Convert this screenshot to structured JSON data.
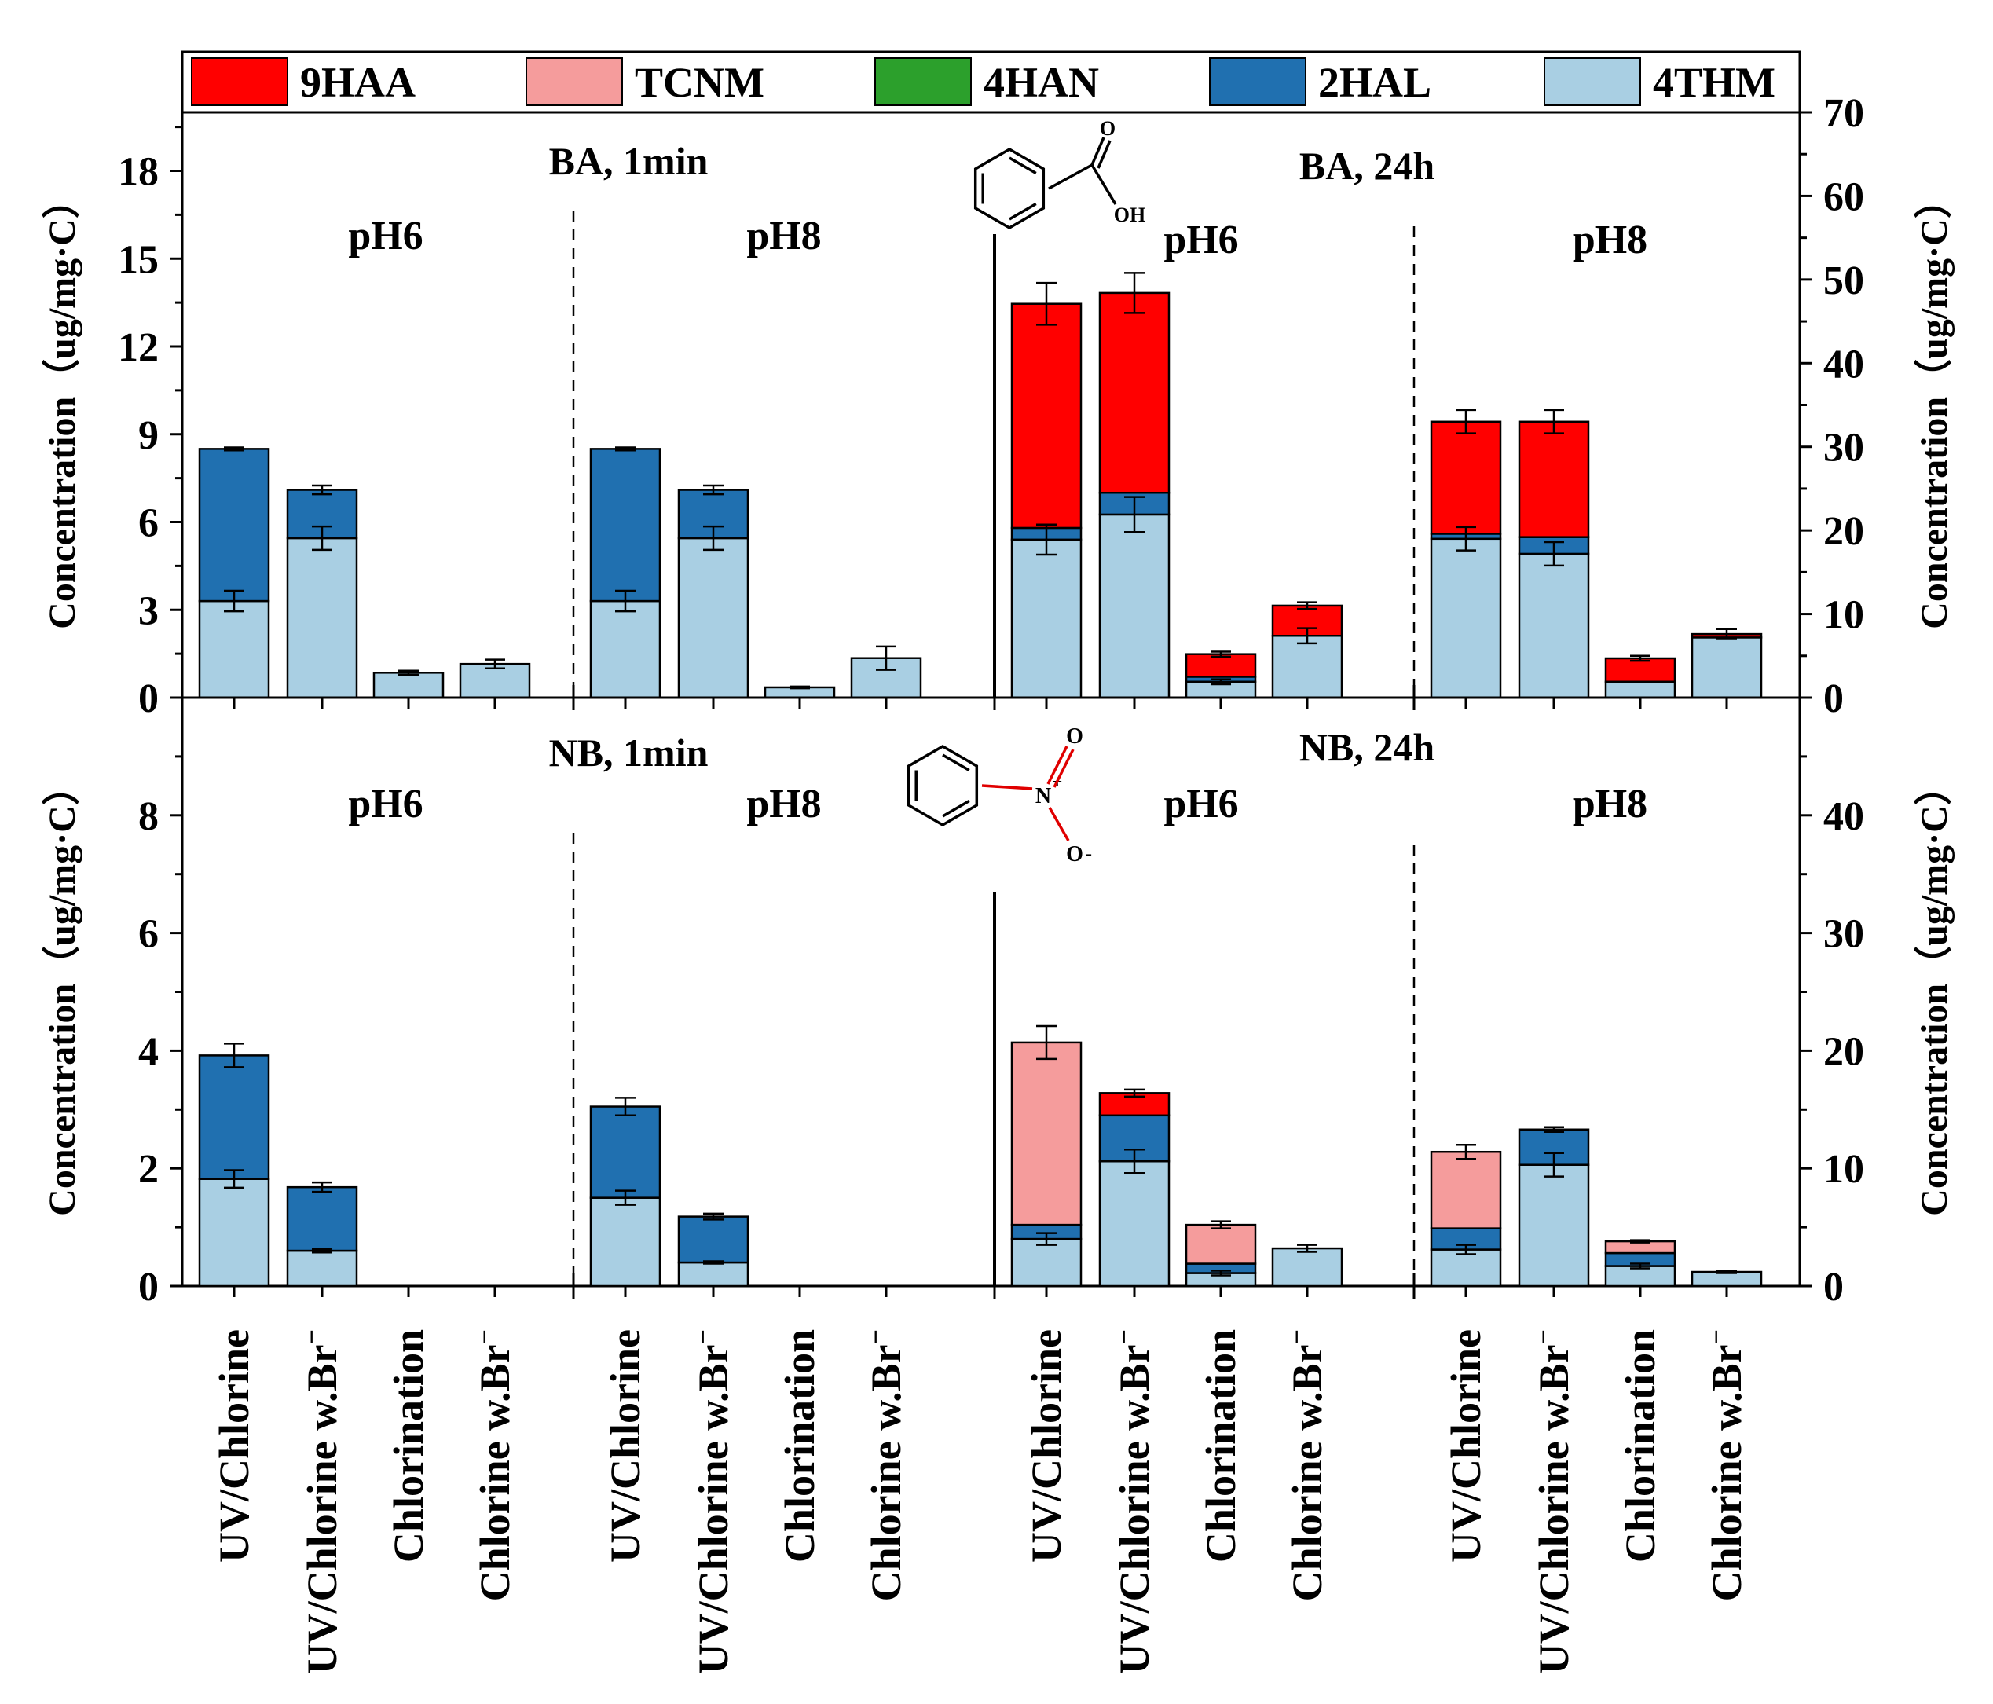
{
  "legend": [
    {
      "key": "HAA",
      "label": "9HAA",
      "color": "#ff0000"
    },
    {
      "key": "TCNM",
      "label": "TCNM",
      "color": "#f59c9c"
    },
    {
      "key": "HAN",
      "label": "4HAN",
      "color": "#2ca02c"
    },
    {
      "key": "HAL",
      "label": "2HAL",
      "color": "#2070b0"
    },
    {
      "key": "THM",
      "label": "4THM",
      "color": "#a9cfe3"
    }
  ],
  "chart_data": [
    {
      "type": "bar",
      "stacked": true,
      "panel": "top",
      "compound": "benzoic acid",
      "molecule_labels": {
        "carbonyl_o": "O",
        "hydroxyl": "OH"
      },
      "left_axis": {
        "label": "Concentration（ug/mg·C）",
        "ylim": [
          0,
          20
        ],
        "ticks": [
          0,
          3,
          6,
          9,
          12,
          15,
          18
        ]
      },
      "right_axis": {
        "label": "Concentration（ug/mg·C）",
        "ylim": [
          0,
          70
        ],
        "ticks": [
          0,
          10,
          20,
          30,
          40,
          50,
          60,
          70
        ]
      },
      "categories": [
        "UV/Chlorine",
        "UV/Chlorine w.Br",
        "Chlorination",
        "Chlorine w.Br"
      ],
      "groups": [
        {
          "title": "BA, 1min",
          "ph": "pH6",
          "axis": "left",
          "bars": [
            {
              "THM": 3.3,
              "HAL": 5.2,
              "HAN": 0,
              "TCNM": 0,
              "HAA": 0,
              "err_inner": 0.35,
              "err_total": 0.05
            },
            {
              "THM": 5.45,
              "HAL": 1.65,
              "HAN": 0,
              "TCNM": 0,
              "HAA": 0,
              "err_inner": 0.4,
              "err_total": 0.15
            },
            {
              "THM": 0.85,
              "HAL": 0,
              "HAN": 0,
              "TCNM": 0,
              "HAA": 0,
              "err_inner": 0,
              "err_total": 0.07
            },
            {
              "THM": 1.15,
              "HAL": 0,
              "HAN": 0,
              "TCNM": 0,
              "HAA": 0,
              "err_inner": 0,
              "err_total": 0.15
            }
          ]
        },
        {
          "title": "",
          "ph": "pH8",
          "axis": "left",
          "bars": [
            {
              "THM": 3.3,
              "HAL": 5.2,
              "HAN": 0,
              "TCNM": 0,
              "HAA": 0,
              "err_inner": 0.35,
              "err_total": 0.05
            },
            {
              "THM": 5.45,
              "HAL": 1.65,
              "HAN": 0,
              "TCNM": 0,
              "HAA": 0,
              "err_inner": 0.4,
              "err_total": 0.15
            },
            {
              "THM": 0.35,
              "HAL": 0,
              "HAN": 0,
              "TCNM": 0,
              "HAA": 0,
              "err_inner": 0,
              "err_total": 0.03
            },
            {
              "THM": 1.35,
              "HAL": 0,
              "HAN": 0,
              "TCNM": 0,
              "HAA": 0,
              "err_inner": 0,
              "err_total": 0.4
            }
          ]
        },
        {
          "title": "BA, 24h",
          "ph": "pH6",
          "axis": "right",
          "bars": [
            {
              "THM": 18.9,
              "HAL": 1.4,
              "HAN": 0,
              "TCNM": 0,
              "HAA": 26.8,
              "err_inner": 1.8,
              "err_total": 2.5
            },
            {
              "THM": 21.9,
              "HAL": 2.6,
              "HAN": 0,
              "TCNM": 0,
              "HAA": 23.9,
              "err_inner": 2.1,
              "err_total": 2.4
            },
            {
              "THM": 1.9,
              "HAL": 0.6,
              "HAN": 0,
              "TCNM": 0,
              "HAA": 2.7,
              "err_inner": 0.3,
              "err_total": 0.3
            },
            {
              "THM": 7.4,
              "HAL": 0,
              "HAN": 0,
              "TCNM": 0,
              "HAA": 3.6,
              "err_inner": 0.9,
              "err_total": 0.4
            }
          ]
        },
        {
          "title": "",
          "ph": "pH8",
          "axis": "right",
          "bars": [
            {
              "THM": 19.0,
              "HAL": 0.6,
              "HAN": 0,
              "TCNM": 0,
              "HAA": 13.4,
              "err_inner": 1.4,
              "err_total": 1.4
            },
            {
              "THM": 17.2,
              "HAL": 2.0,
              "HAN": 0,
              "TCNM": 0,
              "HAA": 13.8,
              "err_inner": 1.4,
              "err_total": 1.4
            },
            {
              "THM": 1.9,
              "HAL": 0,
              "HAN": 0,
              "TCNM": 0,
              "HAA": 2.8,
              "err_inner": 0,
              "err_total": 0.3
            },
            {
              "THM": 7.2,
              "HAL": 0,
              "HAN": 0,
              "TCNM": 0,
              "HAA": 0.4,
              "err_inner": 0,
              "err_total": 0.6
            }
          ]
        }
      ]
    },
    {
      "type": "bar",
      "stacked": true,
      "panel": "bottom",
      "compound": "nitrobenzene",
      "molecule_labels": {
        "nitrogen": "N",
        "n_charge": "+",
        "oxygen_top": "O",
        "oxygen_bottom": "O",
        "o_charge": "-"
      },
      "left_axis": {
        "label": "Concentration（ug/mg·C）",
        "ylim": [
          0,
          10
        ],
        "ticks": [
          0,
          2,
          4,
          6,
          8
        ]
      },
      "right_axis": {
        "label": "Concentration（ug/mg·C）",
        "ylim": [
          0,
          50
        ],
        "ticks": [
          0,
          10,
          20,
          30,
          40
        ]
      },
      "categories": [
        "UV/Chlorine",
        "UV/Chlorine w.Br",
        "Chlorination",
        "Chlorine w.Br"
      ],
      "groups": [
        {
          "title": "NB, 1min",
          "ph": "pH6",
          "axis": "left",
          "bars": [
            {
              "THM": 1.82,
              "HAL": 2.1,
              "HAN": 0,
              "TCNM": 0,
              "HAA": 0,
              "err_inner": 0.15,
              "err_total": 0.2
            },
            {
              "THM": 0.6,
              "HAL": 1.08,
              "HAN": 0,
              "TCNM": 0,
              "HAA": 0,
              "err_inner": 0.03,
              "err_total": 0.08
            },
            {
              "THM": 0,
              "HAL": 0,
              "HAN": 0,
              "TCNM": 0,
              "HAA": 0,
              "err_inner": 0,
              "err_total": 0
            },
            {
              "THM": 0,
              "HAL": 0,
              "HAN": 0,
              "TCNM": 0,
              "HAA": 0,
              "err_inner": 0,
              "err_total": 0
            }
          ]
        },
        {
          "title": "",
          "ph": "pH8",
          "axis": "left",
          "bars": [
            {
              "THM": 1.5,
              "HAL": 1.55,
              "HAN": 0,
              "TCNM": 0,
              "HAA": 0,
              "err_inner": 0.12,
              "err_total": 0.15
            },
            {
              "THM": 0.4,
              "HAL": 0.78,
              "HAN": 0,
              "TCNM": 0,
              "HAA": 0,
              "err_inner": 0.02,
              "err_total": 0.05
            },
            {
              "THM": 0,
              "HAL": 0,
              "HAN": 0,
              "TCNM": 0,
              "HAA": 0,
              "err_inner": 0,
              "err_total": 0
            },
            {
              "THM": 0,
              "HAL": 0,
              "HAN": 0,
              "TCNM": 0,
              "HAA": 0,
              "err_inner": 0,
              "err_total": 0
            }
          ]
        },
        {
          "title": "NB, 24h",
          "ph": "pH6",
          "axis": "right",
          "bars": [
            {
              "THM": 4.0,
              "HAL": 1.2,
              "HAN": 0,
              "TCNM": 15.5,
              "HAA": 0,
              "err_inner": 0.5,
              "err_total": 1.4
            },
            {
              "THM": 10.6,
              "HAL": 3.9,
              "HAN": 0,
              "TCNM": 0,
              "HAA": 1.9,
              "err_inner": 1.0,
              "err_total": 0.3
            },
            {
              "THM": 1.1,
              "HAL": 0.8,
              "HAN": 0,
              "TCNM": 3.3,
              "HAA": 0,
              "err_inner": 0.2,
              "err_total": 0.3
            },
            {
              "THM": 3.2,
              "HAL": 0,
              "HAN": 0,
              "TCNM": 0,
              "HAA": 0,
              "err_inner": 0,
              "err_total": 0.3
            }
          ]
        },
        {
          "title": "",
          "ph": "pH8",
          "axis": "right",
          "bars": [
            {
              "THM": 3.1,
              "HAL": 1.8,
              "HAN": 0,
              "TCNM": 6.5,
              "HAA": 0,
              "err_inner": 0.4,
              "err_total": 0.6
            },
            {
              "THM": 10.3,
              "HAL": 3.0,
              "HAN": 0,
              "TCNM": 0,
              "HAA": 0,
              "err_inner": 1.0,
              "err_total": 0.2
            },
            {
              "THM": 1.7,
              "HAL": 1.1,
              "HAN": 0,
              "TCNM": 1.0,
              "HAA": 0,
              "err_inner": 0.2,
              "err_total": 0.1
            },
            {
              "THM": 1.2,
              "HAL": 0,
              "HAN": 0,
              "TCNM": 0,
              "HAA": 0,
              "err_inner": 0,
              "err_total": 0.1
            }
          ]
        }
      ]
    }
  ],
  "x_labels": [
    {
      "text": "UV/Chlorine",
      "sup": ""
    },
    {
      "text": "UV/Chlorine w.Br",
      "sup": "−"
    },
    {
      "text": "Chlorination",
      "sup": ""
    },
    {
      "text": "Chlorine w.Br",
      "sup": "−"
    },
    {
      "text": "UV/Chlorine",
      "sup": ""
    },
    {
      "text": "UV/Chlorine w.Br",
      "sup": "−"
    },
    {
      "text": "Chlorination",
      "sup": ""
    },
    {
      "text": "Chlorine w.Br",
      "sup": "−"
    },
    {
      "text": "UV/Chlorine",
      "sup": ""
    },
    {
      "text": "UV/Chlorine w.Br",
      "sup": "−"
    },
    {
      "text": "Chlorination",
      "sup": ""
    },
    {
      "text": "Chlorine w.Br",
      "sup": "−"
    },
    {
      "text": "UV/Chlorine",
      "sup": ""
    },
    {
      "text": "UV/Chlorine w.Br",
      "sup": "−"
    },
    {
      "text": "Chlorination",
      "sup": ""
    },
    {
      "text": "Chlorine w.Br",
      "sup": "−"
    }
  ]
}
